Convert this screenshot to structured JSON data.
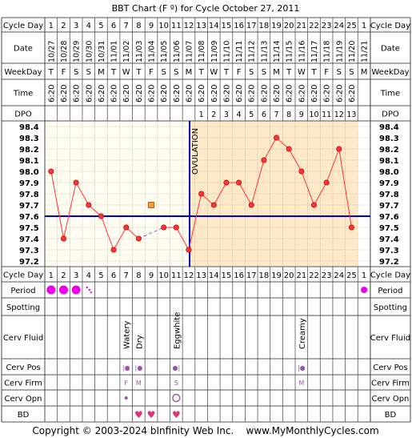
{
  "title": "BBT Chart (F º) for Cycle October 27, 2011",
  "row_labels": {
    "cycle_day": "Cycle Day",
    "date": "Date",
    "weekday": "WeekDay",
    "time": "Time",
    "dpo": "DPO",
    "period": "Period",
    "spotting": "Spotting",
    "cerv_fluid": "Cerv Fluid",
    "cerv_pos": "Cerv Pos",
    "cerv_firm": "Cerv Firm",
    "cerv_opn": "Cerv Opn",
    "bd": "BD"
  },
  "footer": "Copyright © 2003-2024 bInfinity Web Inc.    www.MyMonthlyCycles.com",
  "colors": {
    "pre_ovulation_bg": "#fffdf0",
    "post_ovulation_bg": "#fde9c8",
    "temp_line": "#ff3333",
    "coverline": "#0000cc",
    "period": "#ee00ee",
    "bd_heart": "#e0307a",
    "cerv_marker": "#9955aa",
    "grid": "#b0b0b0"
  },
  "chart_data": {
    "type": "line",
    "title": "BBT Chart (F º) for Cycle October 27, 2011",
    "cycle_days": [
      1,
      2,
      3,
      4,
      5,
      6,
      7,
      8,
      9,
      10,
      11,
      12,
      13,
      14,
      15,
      16,
      17,
      18,
      19,
      20,
      21,
      22,
      23,
      24,
      25,
      1
    ],
    "dates": [
      "10/27",
      "10/28",
      "10/29",
      "10/30",
      "10/31",
      "11/01",
      "11/02",
      "11/03",
      "11/04",
      "11/05",
      "11/06",
      "11/07",
      "11/08",
      "11/09",
      "11/10",
      "11/11",
      "11/12",
      "11/13",
      "11/14",
      "11/15",
      "11/16",
      "11/17",
      "11/18",
      "11/19",
      "11/20",
      "11/21"
    ],
    "weekdays": [
      "T",
      "F",
      "S",
      "S",
      "M",
      "T",
      "W",
      "T",
      "F",
      "S",
      "S",
      "M",
      "T",
      "W",
      "T",
      "F",
      "S",
      "S",
      "M",
      "T",
      "W",
      "T",
      "F",
      "S",
      "S",
      "M"
    ],
    "times": [
      "6:20",
      "6:20",
      "6:20",
      "6:20",
      "6:20",
      "6:20",
      "6:20",
      "6:20",
      "6:20",
      "6:20",
      "6:20",
      "6:20",
      "6:20",
      "6:20",
      "6:20",
      "6:20",
      "6:20",
      "6:20",
      "6:20",
      "6:20",
      "6:20",
      "6:20",
      "6:20",
      "6:20",
      "6:20",
      ""
    ],
    "dpo": [
      "",
      "",
      "",
      "",
      "",
      "",
      "",
      "",
      "",
      "",
      "",
      "",
      "1",
      "2",
      "3",
      "4",
      "5",
      "6",
      "7",
      "8",
      "9",
      "10",
      "11",
      "12",
      "13",
      ""
    ],
    "temperatures": [
      98.0,
      97.4,
      97.9,
      97.7,
      97.6,
      97.3,
      97.5,
      97.4,
      null,
      97.5,
      97.5,
      97.3,
      97.8,
      97.7,
      97.9,
      97.9,
      97.7,
      98.1,
      98.3,
      98.2,
      98.0,
      97.7,
      97.9,
      98.2,
      97.5,
      null
    ],
    "open_marker": {
      "day_index": 8,
      "value": 97.7
    },
    "y_ticks": [
      98.4,
      98.3,
      98.2,
      98.1,
      98.0,
      97.9,
      97.8,
      97.7,
      97.6,
      97.5,
      97.4,
      97.3,
      97.2
    ],
    "ylim": [
      97.15,
      98.45
    ],
    "coverline": 97.6,
    "ovulation_after_index": 11,
    "ovulation_label": "OVULATION",
    "period": [
      "large",
      "large",
      "large",
      "dots",
      "",
      "",
      "",
      "",
      "",
      "",
      "",
      "",
      "",
      "",
      "",
      "",
      "",
      "",
      "",
      "",
      "",
      "",
      "",
      "",
      "",
      "small"
    ],
    "cerv_fluid": [
      {
        "index": 6,
        "label": "Watery"
      },
      {
        "index": 7,
        "label": "Dry"
      },
      {
        "index": 10,
        "label": "Eggwhite"
      },
      {
        "index": 20,
        "label": "Creamy"
      }
    ],
    "cerv_pos": [
      {
        "index": 6,
        "label": "|●"
      },
      {
        "index": 7,
        "label": "|●"
      },
      {
        "index": 10,
        "label": "●|"
      },
      {
        "index": 20,
        "label": "|●"
      }
    ],
    "cerv_firm": [
      {
        "index": 6,
        "label": "F"
      },
      {
        "index": 7,
        "label": "M"
      },
      {
        "index": 10,
        "label": "S"
      },
      {
        "index": 20,
        "label": "M"
      }
    ],
    "cerv_opn": [
      {
        "index": 6,
        "kind": "dot"
      },
      {
        "index": 10,
        "kind": "ring"
      }
    ],
    "bd": [
      7,
      8,
      10
    ]
  }
}
